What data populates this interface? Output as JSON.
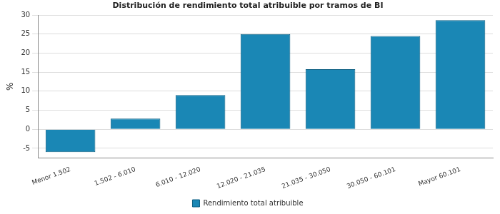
{
  "chart_data": {
    "type": "bar",
    "title": "Distribución de rendimiento total atribuible por tramos de BI",
    "y_label": "%",
    "categories": [
      "Menor 1.502",
      "1.502 - 6.010",
      "6.010 - 12.020",
      "12.020 - 21.035",
      "21.035 - 30.050",
      "30.050 - 60.101",
      "Mayor 60.101"
    ],
    "series": [
      {
        "name": "Rendimiento total atribuible",
        "color": "#1a87b5",
        "values": [
          -6,
          2.8,
          9,
          25,
          15.8,
          24.5,
          28.7
        ]
      }
    ],
    "ylim": [
      -7.5,
      30
    ],
    "yticks": [
      -5,
      0,
      5,
      10,
      15,
      20,
      25,
      30
    ],
    "grid": true,
    "legend": "bottom"
  }
}
